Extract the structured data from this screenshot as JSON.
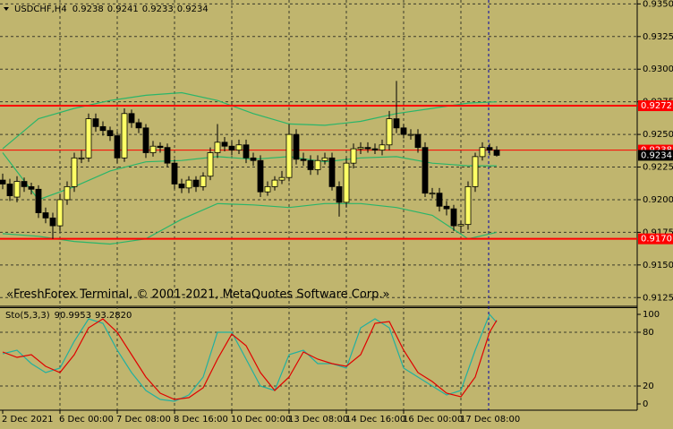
{
  "chart_data": [
    {
      "type": "candlestick",
      "title": "USDCHF,H4",
      "ohlc_header": [
        0.9238,
        0.9241,
        0.9233,
        0.9234
      ],
      "watermark": "«FreshForex Terminal, © 2001-2021, MetaQuotes Software Corp.»",
      "categories": [
        "2 Dec 2021",
        null,
        null,
        null,
        null,
        null,
        null,
        null,
        "6 Dec 00:00",
        null,
        null,
        null,
        null,
        null,
        null,
        null,
        "7 Dec 08:00",
        null,
        null,
        null,
        null,
        null,
        null,
        null,
        "8 Dec 16:00",
        null,
        null,
        null,
        null,
        null,
        null,
        null,
        "10 Dec 00:00",
        null,
        null,
        null,
        null,
        null,
        null,
        null,
        "13 Dec 08:00",
        null,
        null,
        null,
        null,
        null,
        null,
        null,
        "14 Dec 16:00",
        null,
        null,
        null,
        null,
        null,
        null,
        null,
        "16 Dec 00:00",
        null,
        null,
        null,
        null,
        null,
        null,
        null,
        "17 Dec 08:00",
        null,
        null,
        null,
        null,
        null
      ],
      "open": [
        0.9215,
        0.9212,
        0.9202,
        0.9214,
        0.921,
        0.9208,
        0.919,
        0.9186,
        0.918,
        0.92,
        0.921,
        0.9232,
        0.9232,
        0.9262,
        0.9256,
        0.9253,
        0.9249,
        0.9232,
        0.9266,
        0.9259,
        0.9255,
        0.9236,
        0.9241,
        0.924,
        0.9228,
        0.9212,
        0.9209,
        0.9215,
        0.921,
        0.9218,
        0.9236,
        0.9244,
        0.9241,
        0.9238,
        0.9242,
        0.9232,
        0.923,
        0.9206,
        0.921,
        0.9215,
        0.9217,
        0.925,
        0.9231,
        0.923,
        0.9223,
        0.923,
        0.9232,
        0.921,
        0.9198,
        0.9228,
        0.9239,
        0.924,
        0.9239,
        0.9238,
        0.9242,
        0.9262,
        0.9255,
        0.925,
        0.925,
        0.924,
        0.9205,
        0.9205,
        0.9195,
        0.9193,
        0.918,
        0.9181,
        0.921,
        0.9233,
        0.924,
        0.9238
      ],
      "high": [
        0.922,
        0.9216,
        0.9218,
        0.9217,
        0.9213,
        0.9211,
        0.9194,
        0.919,
        0.9204,
        0.9214,
        0.9236,
        0.9238,
        0.9266,
        0.9266,
        0.926,
        0.9256,
        0.9252,
        0.927,
        0.9269,
        0.9262,
        0.9258,
        0.9245,
        0.9244,
        0.9243,
        0.9231,
        0.9216,
        0.9218,
        0.9218,
        0.9221,
        0.924,
        0.9258,
        0.9248,
        0.9245,
        0.9246,
        0.9246,
        0.9236,
        0.9234,
        0.9214,
        0.9218,
        0.9222,
        0.9258,
        0.9254,
        0.9236,
        0.9234,
        0.9234,
        0.9236,
        0.9236,
        0.9214,
        0.9232,
        0.9243,
        0.9244,
        0.9244,
        0.9243,
        0.9246,
        0.9268,
        0.9291,
        0.9258,
        0.9254,
        0.9254,
        0.9244,
        0.9209,
        0.9209,
        0.9199,
        0.9196,
        0.9184,
        0.9214,
        0.9236,
        0.9244,
        0.9243,
        0.9241
      ],
      "low": [
        0.9208,
        0.9199,
        0.9198,
        0.9206,
        0.9204,
        0.9186,
        0.9182,
        0.917,
        0.9176,
        0.9196,
        0.9206,
        0.9228,
        0.9229,
        0.9252,
        0.9249,
        0.9245,
        0.9228,
        0.9229,
        0.9255,
        0.9251,
        0.9232,
        0.9233,
        0.9236,
        0.9225,
        0.9208,
        0.9205,
        0.9205,
        0.9206,
        0.9207,
        0.9215,
        0.9232,
        0.9237,
        0.9234,
        0.9235,
        0.9228,
        0.9226,
        0.9202,
        0.9203,
        0.9207,
        0.9212,
        0.9214,
        0.9227,
        0.9226,
        0.9219,
        0.9219,
        0.9227,
        0.9207,
        0.9187,
        0.9194,
        0.9224,
        0.9235,
        0.9236,
        0.9235,
        0.9234,
        0.9238,
        0.9251,
        0.9247,
        0.9246,
        0.9236,
        0.9202,
        0.9201,
        0.9191,
        0.9188,
        0.9176,
        0.9175,
        0.9177,
        0.9206,
        0.923,
        0.9234,
        0.9233
      ],
      "close": [
        0.9212,
        0.9203,
        0.9214,
        0.921,
        0.9208,
        0.919,
        0.9186,
        0.918,
        0.92,
        0.921,
        0.9232,
        0.9232,
        0.9262,
        0.9256,
        0.9253,
        0.9249,
        0.9232,
        0.9266,
        0.9259,
        0.9255,
        0.9236,
        0.9241,
        0.924,
        0.9228,
        0.9212,
        0.9209,
        0.9215,
        0.921,
        0.9218,
        0.9236,
        0.9244,
        0.9241,
        0.9238,
        0.9242,
        0.9232,
        0.923,
        0.9206,
        0.921,
        0.9215,
        0.9217,
        0.925,
        0.9231,
        0.923,
        0.9223,
        0.923,
        0.9232,
        0.921,
        0.9198,
        0.9228,
        0.9239,
        0.924,
        0.9239,
        0.9238,
        0.9242,
        0.9262,
        0.9255,
        0.925,
        0.925,
        0.924,
        0.9205,
        0.9205,
        0.9195,
        0.9193,
        0.918,
        0.9181,
        0.921,
        0.9233,
        0.924,
        0.9238,
        0.9234
      ],
      "up_color": "#ffff66",
      "down_color": "#000000",
      "bands": [
        {
          "color": "#2ab56a",
          "x": [
            0,
            5,
            10,
            15,
            20,
            25,
            30,
            35,
            40,
            45,
            50,
            55,
            60,
            65,
            69
          ],
          "values": [
            0.9239,
            0.9262,
            0.927,
            0.9276,
            0.928,
            0.9282,
            0.9276,
            0.9266,
            0.9258,
            0.9257,
            0.926,
            0.9266,
            0.927,
            0.9274,
            0.9275
          ]
        },
        {
          "color": "#2ab56a",
          "x": [
            0,
            5,
            10,
            15,
            20,
            25,
            30,
            35,
            40,
            45,
            50,
            55,
            60,
            65,
            69
          ],
          "values": [
            0.9236,
            0.92,
            0.921,
            0.9222,
            0.9229,
            0.923,
            0.9233,
            0.9231,
            0.9233,
            0.9229,
            0.9232,
            0.9233,
            0.9228,
            0.9226,
            0.9226
          ]
        },
        {
          "color": "#2ab56a",
          "x": [
            0,
            5,
            10,
            15,
            20,
            25,
            30,
            35,
            40,
            45,
            50,
            55,
            60,
            65,
            69
          ],
          "values": [
            0.9174,
            0.9172,
            0.9168,
            0.9166,
            0.917,
            0.9185,
            0.9197,
            0.9196,
            0.9194,
            0.9197,
            0.9197,
            0.9194,
            0.9188,
            0.917,
            0.9175
          ]
        }
      ],
      "levels": {
        "values": [
          0.9272,
          0.9238,
          0.917
        ],
        "value_labels": [
          "0.9272",
          "0.9238",
          "0.9170"
        ],
        "color": "#ff0000"
      },
      "ylim": [
        0.9119,
        0.9353
      ],
      "yticks": [
        {
          "value": 0.935,
          "label": "0.9350"
        },
        0.9325,
        {
          "value": 0.93,
          "label": "0.9300"
        },
        0.9275,
        {
          "value": 0.925,
          "label": "0.9250"
        },
        0.9225,
        {
          "value": 0.92,
          "label": "0.9200"
        },
        0.9175,
        {
          "value": 0.915,
          "label": "0.9150"
        },
        0.9125
      ],
      "grid": true
    },
    {
      "type": "line",
      "title": "Sto(5,3,3)",
      "readout": {
        "values": [
          90.9953,
          93.282
        ],
        "value_labels": [
          "90.9953",
          "93.2820"
        ]
      },
      "series": [
        {
          "color": "#22b0a0",
          "x": [
            0,
            2,
            4,
            6,
            8,
            10,
            12,
            14,
            16,
            18,
            20,
            22,
            24,
            26,
            28,
            30,
            32,
            34,
            36,
            38,
            40,
            42,
            44,
            46,
            48,
            50,
            52,
            54,
            56,
            58,
            60,
            62,
            64,
            66,
            68,
            69
          ],
          "values": [
            56,
            60,
            45,
            35,
            40,
            70,
            95,
            90,
            60,
            35,
            15,
            5,
            3,
            10,
            30,
            80,
            80,
            50,
            20,
            15,
            55,
            60,
            45,
            45,
            40,
            85,
            95,
            85,
            40,
            30,
            20,
            10,
            15,
            60,
            100,
            90.9953
          ]
        },
        {
          "color": "#e00000",
          "x": [
            0,
            2,
            4,
            6,
            8,
            10,
            12,
            14,
            16,
            18,
            20,
            22,
            24,
            26,
            28,
            30,
            32,
            34,
            36,
            38,
            40,
            42,
            44,
            46,
            48,
            50,
            52,
            54,
            56,
            58,
            60,
            62,
            64,
            66,
            68,
            69
          ],
          "values": [
            58,
            52,
            55,
            42,
            35,
            55,
            85,
            95,
            80,
            55,
            30,
            12,
            5,
            7,
            18,
            50,
            78,
            65,
            35,
            15,
            30,
            58,
            50,
            45,
            42,
            55,
            90,
            92,
            60,
            35,
            25,
            12,
            8,
            30,
            80,
            93.282
          ]
        }
      ],
      "ylim": [
        -7,
        107
      ],
      "yticks": [
        0,
        20,
        80,
        100
      ],
      "grid": true
    }
  ]
}
